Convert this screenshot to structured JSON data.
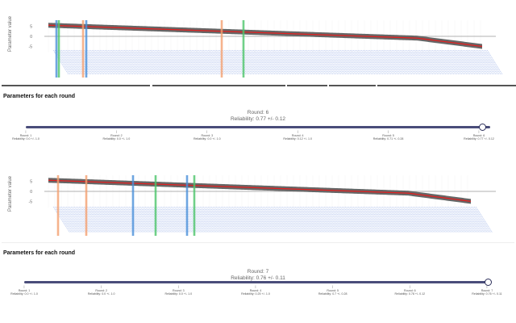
{
  "charts": [
    {
      "ylabel": "Parameter value",
      "yticks": [
        "5",
        "0",
        "-5"
      ]
    },
    {
      "ylabel": "Parameter value",
      "yticks": [
        "5",
        "0",
        "-5"
      ]
    }
  ],
  "panels": [
    {
      "title": "Parameters for each round",
      "current_round": "Round: 6",
      "current_reliability": "Reliability: 0.77 +/- 0.12",
      "steps": [
        {
          "round": "Round: 1",
          "reliability": "Reliability: 0.0 +/- 1.0"
        },
        {
          "round": "Round: 2",
          "reliability": "Reliability: 0.0 +/- 1.0"
        },
        {
          "round": "Round: 3",
          "reliability": "Reliability: 0.0 +/- 1.0"
        },
        {
          "round": "Round: 4",
          "reliability": "Reliability: 0.12 +/- 1.0"
        },
        {
          "round": "Round: 5",
          "reliability": "Reliability: 0.71 +/- 0.28"
        },
        {
          "round": "Round: 6",
          "reliability": "Reliability: 0.77 +/- 0.12"
        }
      ]
    },
    {
      "title": "Parameters for each round",
      "current_round": "Round: 7",
      "current_reliability": "Reliability: 0.76 +/- 0.11",
      "steps": [
        {
          "round": "Round: 1",
          "reliability": "Reliability: 0.0 +/- 1.0"
        },
        {
          "round": "Round: 2",
          "reliability": "Reliability: 0.0 +/- 1.0"
        },
        {
          "round": "Round: 3",
          "reliability": "Reliability: 0.0 +/- 1.0"
        },
        {
          "round": "Round: 4",
          "reliability": "Reliability: 0.25 +/- 1.0"
        },
        {
          "round": "Round: 5",
          "reliability": "Reliability: 0.7 +/- 0.28"
        },
        {
          "round": "Round: 6",
          "reliability": "Reliability: 0.78 +/- 0.12"
        },
        {
          "round": "Round: 7",
          "reliability": "Reliability: 0.76 +/- 0.11"
        }
      ]
    }
  ],
  "colors": {
    "band": "#666666",
    "line": "#e02020",
    "blue": "#4a90d9",
    "green": "#4cc46a",
    "orange": "#f4a070",
    "labels": "#9fb4e8",
    "track": "#4a4d7a"
  }
}
